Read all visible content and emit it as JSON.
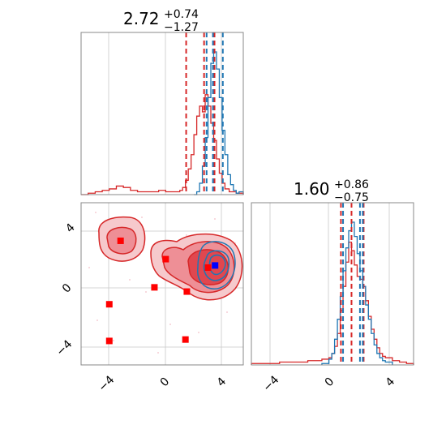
{
  "colors": {
    "red": "#d62728",
    "red_fill_light": "#f6c9cc",
    "red_fill_mid": "#ee8f96",
    "red_fill_dark": "#e0474f",
    "blue": "#1f77b4",
    "marker_red": "#ff0000",
    "marker_blue": "#0000ff",
    "frame": "#888888",
    "grid": "#c8c8c8"
  },
  "chart_data": [
    {
      "panel": "marginal-1",
      "type": "area",
      "title_value": "2.72",
      "title_plus": "+0.74",
      "title_minus": "−1.27",
      "xlim": [
        -6,
        5.5
      ],
      "grid": true,
      "series": [
        {
          "color": "red",
          "x": [
            -6,
            -5.5,
            -5,
            -4.5,
            -4,
            -3.5,
            -3,
            -2.5,
            -2,
            -1.5,
            -1,
            -0.5,
            0,
            0.5,
            1,
            1.2,
            1.4,
            1.6,
            1.8,
            2.0,
            2.2,
            2.4,
            2.6,
            2.8,
            3.0,
            3.2,
            3.4,
            3.6,
            3.8,
            4.0,
            4.2,
            4.5,
            5,
            5.5
          ],
          "values": [
            0.0,
            0.01,
            0.02,
            0.03,
            0.04,
            0.06,
            0.05,
            0.03,
            0.02,
            0.02,
            0.02,
            0.03,
            0.02,
            0.02,
            0.03,
            0.05,
            0.1,
            0.18,
            0.28,
            0.42,
            0.55,
            0.62,
            0.58,
            0.7,
            0.62,
            0.5,
            0.38,
            0.25,
            0.15,
            0.08,
            0.04,
            0.02,
            0.01,
            0.0
          ]
        },
        {
          "color": "blue",
          "x": [
            2.0,
            2.2,
            2.4,
            2.6,
            2.8,
            3.0,
            3.2,
            3.4,
            3.6,
            3.8,
            4.0,
            4.2,
            4.4,
            4.6,
            4.8,
            5.0,
            5.2,
            5.5
          ],
          "values": [
            0.0,
            0.02,
            0.08,
            0.2,
            0.4,
            0.68,
            0.92,
            1.0,
            0.88,
            0.68,
            0.45,
            0.28,
            0.14,
            0.07,
            0.03,
            0.01,
            0.02,
            0.0
          ]
        }
      ],
      "quantile_lines": [
        {
          "color": "red",
          "x": [
            1.45,
            2.72,
            3.46
          ]
        },
        {
          "color": "blue",
          "x": [
            2.9,
            3.35,
            4.05
          ]
        }
      ]
    },
    {
      "panel": "joint",
      "type": "scatter",
      "xlim": [
        -6,
        5.5
      ],
      "ylim": [
        -5.5,
        6
      ],
      "xticks": [
        "−4",
        "0",
        "4"
      ],
      "yticks": [
        "−4",
        "0",
        "4"
      ],
      "grid": true,
      "red_markers": [
        {
          "x": -3.2,
          "y": 3.3
        },
        {
          "x": 0.0,
          "y": 2.0
        },
        {
          "x": -0.8,
          "y": 0.0
        },
        {
          "x": 1.5,
          "y": -0.3
        },
        {
          "x": -4.0,
          "y": -1.2
        },
        {
          "x": -4.0,
          "y": -3.8
        },
        {
          "x": 1.4,
          "y": -3.7
        },
        {
          "x": 3.0,
          "y": 1.4
        }
      ],
      "blue_markers": [
        {
          "x": 3.5,
          "y": 1.55
        }
      ]
    },
    {
      "panel": "marginal-2",
      "type": "area",
      "title_value": "1.60",
      "title_plus": "+0.86",
      "title_minus": "−0.75",
      "xlim": [
        -5.5,
        6
      ],
      "xticks": [
        "−4",
        "0",
        "4"
      ],
      "grid": true,
      "series": [
        {
          "color": "red",
          "x": [
            -5.5,
            -4.5,
            -3.5,
            -2.5,
            -1.5,
            -0.5,
            0,
            0.2,
            0.4,
            0.6,
            0.8,
            1.0,
            1.2,
            1.4,
            1.6,
            1.8,
            2.0,
            2.2,
            2.4,
            2.6,
            2.8,
            3.0,
            3.2,
            3.4,
            3.6,
            3.8,
            4.0,
            4.5,
            5,
            5.5,
            6
          ],
          "values": [
            0.01,
            0.01,
            0.02,
            0.02,
            0.03,
            0.04,
            0.05,
            0.08,
            0.13,
            0.22,
            0.38,
            0.55,
            0.72,
            0.86,
            0.8,
            0.7,
            0.62,
            0.6,
            0.55,
            0.45,
            0.34,
            0.25,
            0.18,
            0.12,
            0.08,
            0.06,
            0.05,
            0.03,
            0.02,
            0.01,
            0.0
          ]
        },
        {
          "color": "blue",
          "x": [
            -0.5,
            0,
            0.2,
            0.4,
            0.6,
            0.8,
            1.0,
            1.2,
            1.4,
            1.6,
            1.8,
            2.0,
            2.2,
            2.4,
            2.6,
            2.8,
            3.0,
            3.2,
            3.4,
            3.6,
            3.8,
            4.0,
            4.5
          ],
          "values": [
            0.01,
            0.04,
            0.08,
            0.18,
            0.32,
            0.48,
            0.66,
            0.82,
            0.94,
            1.0,
            0.9,
            0.78,
            0.66,
            0.55,
            0.42,
            0.32,
            0.22,
            0.14,
            0.08,
            0.05,
            0.03,
            0.02,
            0.0
          ]
        }
      ],
      "quantile_lines": [
        {
          "color": "red",
          "x": [
            0.85,
            1.6,
            2.46
          ]
        },
        {
          "color": "blue",
          "x": [
            1.0,
            2.2,
            2.4
          ]
        }
      ]
    }
  ]
}
